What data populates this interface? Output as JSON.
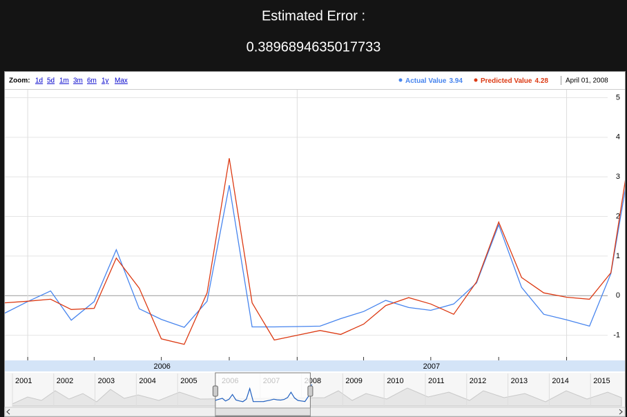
{
  "header": {
    "title": "Estimated Error :",
    "value": "0.3896894635017733"
  },
  "chart_data": {
    "type": "line",
    "zoom_label": "Zoom:",
    "zoom_options": [
      "1d",
      "5d",
      "1m",
      "3m",
      "6m",
      "1y",
      "Max"
    ],
    "selected_date": "April 01, 2008",
    "x": [
      "2005-12-01",
      "2006-01-01",
      "2006-02-01",
      "2006-03-01",
      "2006-04-01",
      "2006-05-01",
      "2006-06-01",
      "2006-07-01",
      "2006-08-01",
      "2006-09-01",
      "2006-10-01",
      "2006-11-01",
      "2006-12-01",
      "2007-01-01",
      "2007-02-01",
      "2007-03-01",
      "2007-04-01",
      "2007-05-01",
      "2007-06-01",
      "2007-07-01",
      "2007-08-01",
      "2007-09-01",
      "2007-10-01",
      "2007-11-01",
      "2007-12-01",
      "2008-01-01",
      "2008-02-01",
      "2008-03-01",
      "2008-04-01"
    ],
    "series": [
      {
        "name": "Actual Value",
        "color": "#4684ee",
        "values": [
          -0.44,
          -0.15,
          0.12,
          -0.62,
          -0.15,
          1.16,
          -0.33,
          -0.6,
          -0.8,
          -0.14,
          2.79,
          -0.79,
          -0.79,
          -0.78,
          -0.77,
          -0.58,
          -0.4,
          -0.12,
          -0.3,
          -0.37,
          -0.21,
          0.32,
          1.79,
          0.21,
          -0.47,
          -0.61,
          -0.77,
          0.56,
          3.94
        ]
      },
      {
        "name": "Predicted Value",
        "color": "#dc3912",
        "values": [
          -0.18,
          -0.14,
          -0.09,
          -0.35,
          -0.32,
          0.95,
          0.19,
          -1.09,
          -1.23,
          0.07,
          3.47,
          -0.18,
          -1.12,
          -1.0,
          -0.88,
          -0.98,
          -0.72,
          -0.25,
          -0.05,
          -0.21,
          -0.47,
          0.35,
          1.86,
          0.46,
          0.07,
          -0.04,
          -0.09,
          0.58,
          4.28
        ]
      }
    ],
    "xlim": [
      "2005-12-01",
      "2008-03-20"
    ],
    "xticks": [
      "2006-01-01",
      "2006-04-01",
      "2006-07-01",
      "2006-10-01",
      "2007-01-01",
      "2007-04-01",
      "2007-07-01",
      "2007-10-01",
      "2008-01-01"
    ],
    "xgrid": [
      "2006-01-01",
      "2007-01-01",
      "2008-01-01"
    ],
    "x_period_labels": [
      {
        "value": "2006-07-02",
        "label": "2006"
      },
      {
        "value": "2007-07-02",
        "label": "2007"
      }
    ],
    "ylim": [
      -1.6,
      5.2
    ],
    "yticks": [
      -1,
      0,
      1,
      2,
      3,
      4,
      5
    ],
    "grid": true,
    "navigator_years": [
      "2001",
      "2002",
      "2003",
      "2004",
      "2005",
      "2006",
      "2007",
      "2008",
      "2009",
      "2010",
      "2011",
      "2012",
      "2013",
      "2014",
      "2015"
    ]
  }
}
